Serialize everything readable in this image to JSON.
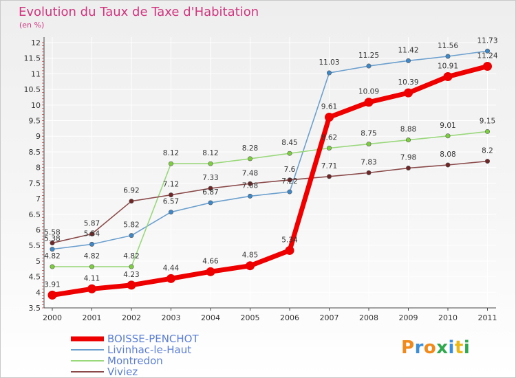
{
  "title": "Evolution du Taux de Taxe d'Habitation",
  "unit_label": "(en %)",
  "brand": {
    "text": "Proxiti",
    "colors": [
      "#f08a1c",
      "#3a8fd8",
      "#f08a1c",
      "#2fa84f",
      "#3a8fd8",
      "#e8b81a",
      "#2fa84f"
    ]
  },
  "colors": {
    "title": "#d0367f",
    "legend_text": "#5b7ed6",
    "grid": "#ffffff",
    "axis": "#444444"
  },
  "chart_data": {
    "type": "line",
    "title": "Evolution du Taux de Taxe d'Habitation",
    "ylabel": "(en %)",
    "xlabel": "",
    "x": [
      "2000",
      "2001",
      "2002",
      "2003",
      "2004",
      "2005",
      "2006",
      "2007",
      "2008",
      "2009",
      "2010",
      "2011"
    ],
    "ylim": [
      3.5,
      12
    ],
    "yticks": [
      "3.5",
      "4",
      "4.5",
      "5",
      "5.5",
      "6",
      "6.5",
      "7",
      "7.5",
      "8",
      "8.5",
      "9",
      "9.5",
      "10",
      "10.5",
      "11",
      "11.5",
      "12"
    ],
    "grid": true,
    "legend_position": "bottom-left",
    "series": [
      {
        "name": "BOISSE-PENCHOT",
        "color": "#ee0000",
        "emphasis": "thick",
        "values": [
          3.91,
          4.11,
          4.23,
          4.44,
          4.66,
          4.85,
          5.34,
          9.61,
          10.09,
          10.39,
          10.91,
          11.24
        ],
        "labels": [
          "3.91",
          "4.11",
          "4.23",
          "4.44",
          "4.66",
          "4.85",
          "5.34",
          "9.61",
          "10.09",
          "10.39",
          "10.91",
          "11.24"
        ]
      },
      {
        "name": "Livinhac-le-Haut",
        "color": "#6b9fcd",
        "marker_color": "#3f88c8",
        "values": [
          5.38,
          5.54,
          5.82,
          6.57,
          6.87,
          7.08,
          7.22,
          11.03,
          11.25,
          11.42,
          11.56,
          11.73
        ],
        "labels": [
          "5.38",
          "5.54",
          "5.82",
          "6.57",
          "6.87",
          "7.08",
          "7.22",
          "11.03",
          "11.25",
          "11.42",
          "11.56",
          "11.73"
        ]
      },
      {
        "name": "Montredon",
        "color": "#9ad87c",
        "marker_color": "#7dcf3f",
        "values": [
          4.82,
          4.82,
          4.82,
          8.12,
          8.12,
          8.28,
          8.45,
          8.62,
          8.75,
          8.88,
          9.01,
          9.15
        ],
        "labels": [
          "4.82",
          "4.82",
          "4.82",
          "8.12",
          "8.12",
          "8.28",
          "8.45",
          "8.62",
          "8.75",
          "8.88",
          "9.01",
          "9.15"
        ]
      },
      {
        "name": "Viviez",
        "color": "#8a4a4a",
        "marker_color": "#6e2626",
        "values": [
          5.58,
          5.87,
          6.92,
          7.12,
          7.33,
          7.48,
          7.6,
          7.71,
          7.83,
          7.98,
          8.08,
          8.2
        ],
        "labels": [
          "5.58",
          "5.87",
          "6.92",
          "7.12",
          "7.33",
          "7.48",
          "7.6",
          "7.71",
          "7.83",
          "7.98",
          "8.08",
          "8.2"
        ]
      }
    ]
  }
}
